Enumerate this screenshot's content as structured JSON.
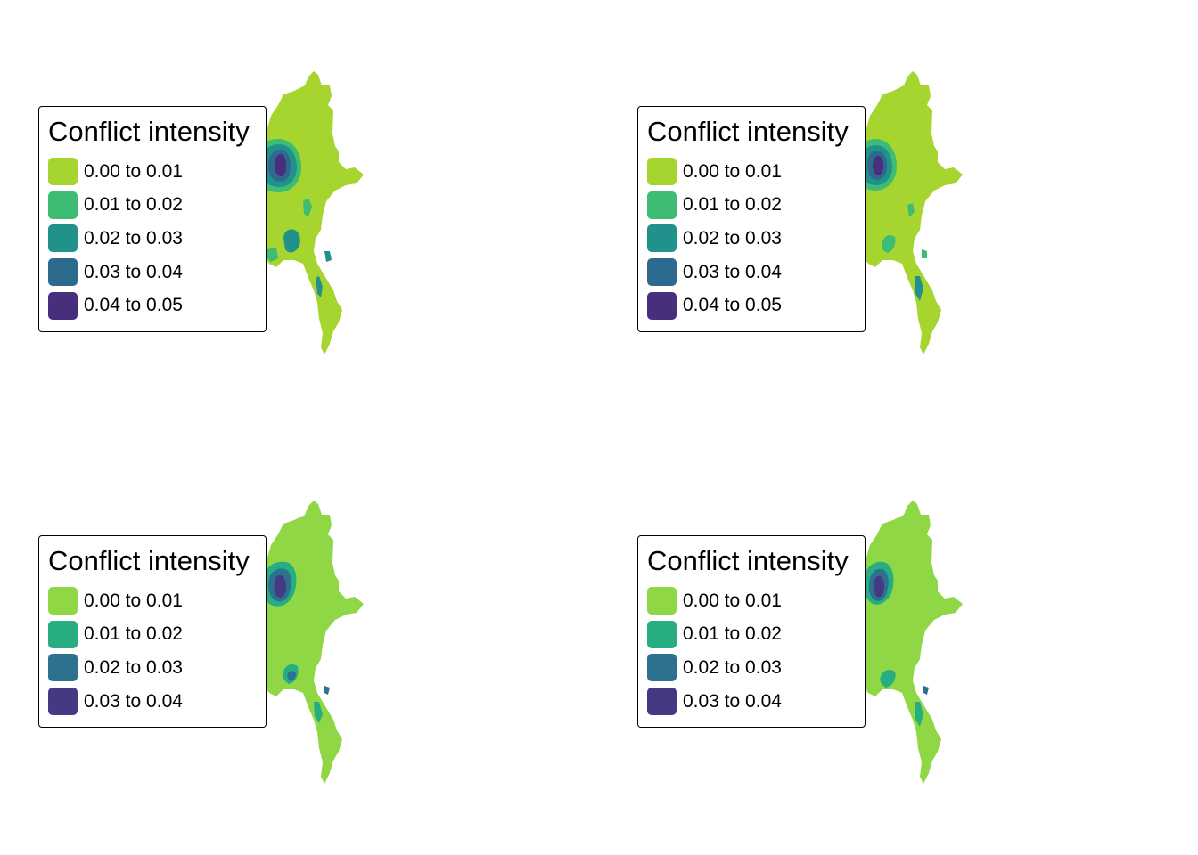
{
  "maps": [
    {
      "legend": {
        "title": "Conflict intensity",
        "items": [
          {
            "label": "0.00 to 0.01",
            "color": "#a6d530"
          },
          {
            "label": "0.01 to 0.02",
            "color": "#3fbc73"
          },
          {
            "label": "0.02 to 0.03",
            "color": "#21918c"
          },
          {
            "label": "0.03 to 0.04",
            "color": "#2e6a8e"
          },
          {
            "label": "0.04 to 0.05",
            "color": "#472f7d"
          }
        ]
      }
    },
    {
      "legend": {
        "title": "Conflict intensity",
        "items": [
          {
            "label": "0.00 to 0.01",
            "color": "#a6d530"
          },
          {
            "label": "0.01 to 0.02",
            "color": "#3fbc73"
          },
          {
            "label": "0.02 to 0.03",
            "color": "#21918c"
          },
          {
            "label": "0.03 to 0.04",
            "color": "#2e6a8e"
          },
          {
            "label": "0.04 to 0.05",
            "color": "#472f7d"
          }
        ]
      }
    },
    {
      "legend": {
        "title": "Conflict intensity",
        "items": [
          {
            "label": "0.00 to 0.01",
            "color": "#8fd744"
          },
          {
            "label": "0.01 to 0.02",
            "color": "#27ad81"
          },
          {
            "label": "0.02 to 0.03",
            "color": "#2c728e"
          },
          {
            "label": "0.03 to 0.04",
            "color": "#443a83"
          }
        ]
      }
    },
    {
      "legend": {
        "title": "Conflict intensity",
        "items": [
          {
            "label": "0.00 to 0.01",
            "color": "#8fd744"
          },
          {
            "label": "0.01 to 0.02",
            "color": "#27ad81"
          },
          {
            "label": "0.02 to 0.03",
            "color": "#2c728e"
          },
          {
            "label": "0.03 to 0.04",
            "color": "#443a83"
          }
        ]
      }
    }
  ]
}
